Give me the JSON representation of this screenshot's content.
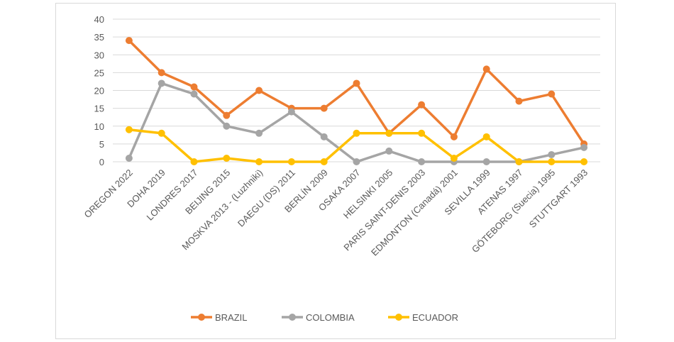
{
  "chart_data": {
    "type": "line",
    "title": "",
    "xlabel": "",
    "ylabel": "",
    "ylim": [
      0,
      40
    ],
    "yticks": [
      0,
      5,
      10,
      15,
      20,
      25,
      30,
      35,
      40
    ],
    "grid": true,
    "legend_position": "bottom",
    "categories": [
      "OREGON 2022",
      "DOHA 2019",
      "LONDRES 2017",
      "BEIJING 2015",
      "MOSKVA 2013 - (Luzhniki)",
      "DAEGU (DS) 2011",
      "BERLÍN 2009",
      "OSAKA 2007",
      "HELSINKI 2005",
      "PARIS SAINT-DENIS 2003",
      "EDMONTON (Canadá) 2001",
      "SEVILLA 1999",
      "ATENAS 1997",
      "GÖTEBORG (Suecia) 1995",
      "STUTTGART 1993"
    ],
    "series": [
      {
        "name": "BRAZIL",
        "color": "#ED7D31",
        "values": [
          34,
          25,
          21,
          13,
          20,
          15,
          15,
          22,
          8,
          16,
          7,
          26,
          17,
          19,
          5
        ]
      },
      {
        "name": "COLOMBIA",
        "color": "#A5A5A5",
        "values": [
          1,
          22,
          19,
          10,
          8,
          14,
          7,
          0,
          3,
          0,
          0,
          0,
          0,
          2,
          4
        ]
      },
      {
        "name": "ECUADOR",
        "color": "#FFC000",
        "values": [
          9,
          8,
          0,
          1,
          0,
          0,
          0,
          8,
          8,
          8,
          1,
          7,
          0,
          0,
          0
        ]
      }
    ]
  }
}
